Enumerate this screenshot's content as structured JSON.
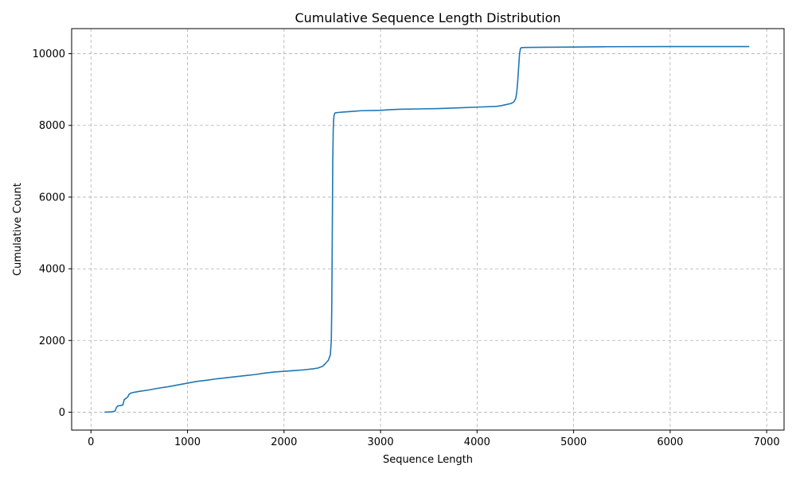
{
  "chart_data": {
    "type": "line",
    "title": "Cumulative Sequence Length Distribution",
    "xlabel": "Sequence Length",
    "ylabel": "Cumulative Count",
    "xlim": [
      -200,
      7180
    ],
    "ylim": [
      -500,
      10700
    ],
    "xticks": [
      0,
      1000,
      2000,
      3000,
      4000,
      5000,
      6000,
      7000
    ],
    "yticks": [
      0,
      2000,
      4000,
      6000,
      8000,
      10000
    ],
    "grid": true,
    "grid_style": "dashed",
    "line_color": "#1f77b4",
    "series": [
      {
        "x": [
          140,
          200,
          250,
          262,
          275,
          330,
          345,
          380,
          395,
          420,
          460,
          500,
          600,
          700,
          800,
          900,
          1000,
          1100,
          1200,
          1300,
          1400,
          1500,
          1600,
          1700,
          1800,
          1900,
          2000,
          2100,
          2200,
          2300,
          2350,
          2400,
          2430,
          2460,
          2480,
          2490,
          2495,
          2500,
          2505,
          2510,
          2515,
          2520,
          2530,
          2560,
          2600,
          2700,
          2800,
          3000,
          3100,
          3200,
          3400,
          3600,
          3800,
          4000,
          4200,
          4250,
          4300,
          4350,
          4380,
          4400,
          4410,
          4420,
          4430,
          4440,
          4450,
          4460,
          4500,
          4700,
          5000,
          5300,
          6000,
          6500,
          6820
        ],
        "y": [
          0,
          5,
          30,
          120,
          170,
          200,
          350,
          420,
          500,
          540,
          560,
          580,
          620,
          670,
          710,
          760,
          810,
          860,
          890,
          930,
          960,
          990,
          1020,
          1050,
          1090,
          1120,
          1140,
          1160,
          1180,
          1210,
          1230,
          1280,
          1360,
          1450,
          1600,
          2000,
          3000,
          5000,
          7000,
          7900,
          8200,
          8300,
          8350,
          8360,
          8370,
          8390,
          8410,
          8420,
          8440,
          8450,
          8460,
          8470,
          8490,
          8510,
          8530,
          8550,
          8580,
          8610,
          8650,
          8750,
          8900,
          9200,
          9600,
          10000,
          10150,
          10170,
          10175,
          10180,
          10185,
          10195,
          10200,
          10200,
          10200
        ]
      }
    ]
  }
}
